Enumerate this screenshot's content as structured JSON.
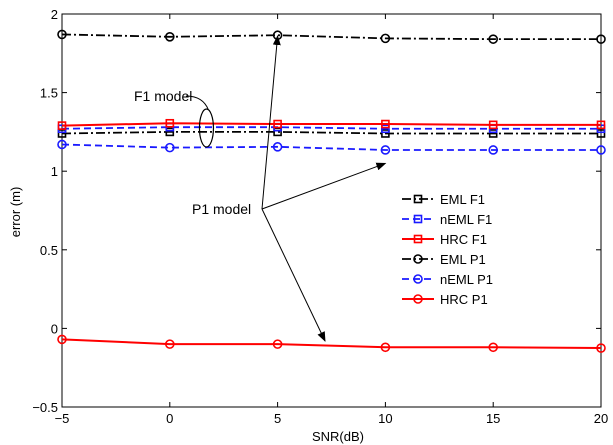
{
  "chart_data": {
    "type": "line",
    "title": "",
    "xlabel": "SNR(dB)",
    "ylabel": "error (m)",
    "xlim": [
      -5,
      20
    ],
    "ylim": [
      -0.5,
      2
    ],
    "x": [
      -5,
      0,
      5,
      10,
      15,
      20
    ],
    "xticks": [
      "−5",
      "0",
      "5",
      "10",
      "15",
      "20"
    ],
    "yticks": [
      "−0.5",
      "0",
      "0.5",
      "1",
      "1.5",
      "2"
    ],
    "grid": false,
    "legend_position": "right",
    "series": [
      {
        "name": "EML F1",
        "values": [
          1.24,
          1.25,
          1.25,
          1.24,
          1.24,
          1.24
        ],
        "color": "#000000",
        "dash": "dashdot",
        "marker": "square"
      },
      {
        "name": "nEML F1",
        "values": [
          1.27,
          1.28,
          1.28,
          1.27,
          1.27,
          1.27
        ],
        "color": "#1a1aff",
        "dash": "dash",
        "marker": "square"
      },
      {
        "name": "HRC F1",
        "values": [
          1.29,
          1.305,
          1.3,
          1.3,
          1.295,
          1.295
        ],
        "color": "#ff0000",
        "dash": "solid",
        "marker": "square"
      },
      {
        "name": "EML P1",
        "values": [
          1.87,
          1.855,
          1.865,
          1.845,
          1.84,
          1.84
        ],
        "color": "#000000",
        "dash": "dashdot",
        "marker": "circle"
      },
      {
        "name": "nEML P1",
        "values": [
          1.17,
          1.15,
          1.155,
          1.135,
          1.135,
          1.135
        ],
        "color": "#1a1aff",
        "dash": "dash",
        "marker": "circle"
      },
      {
        "name": "HRC P1",
        "values": [
          -0.07,
          -0.1,
          -0.1,
          -0.12,
          -0.12,
          -0.125
        ],
        "color": "#ff0000",
        "dash": "solid",
        "marker": "circle"
      }
    ],
    "annotations": [
      {
        "text": "F1 model",
        "target": "F1 curves at x≈1.7"
      },
      {
        "text": "P1 model",
        "arrows_to": [
          {
            "x": 5,
            "y": 1.86
          },
          {
            "x": 10,
            "y": 1.05
          },
          {
            "x": 7.2,
            "y": -0.08
          }
        ]
      }
    ]
  }
}
